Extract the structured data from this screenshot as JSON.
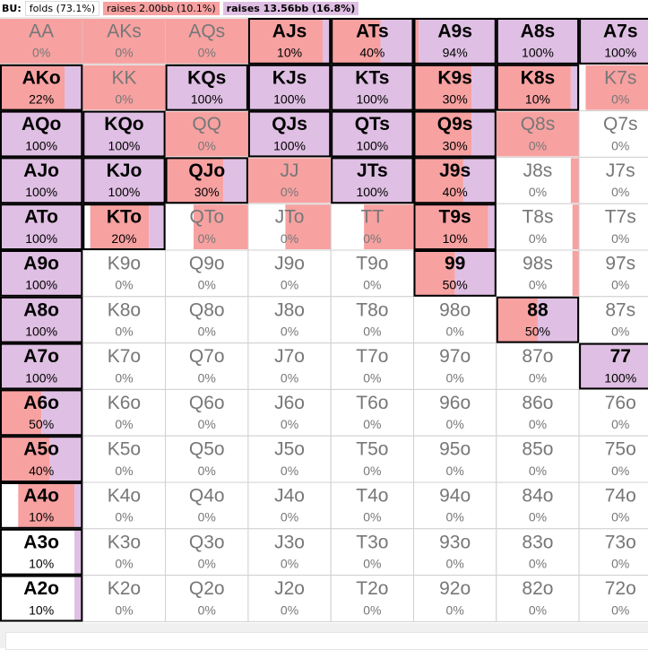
{
  "legend": {
    "position": "BU:",
    "fold": "folds (73.1%)",
    "small": "raises 2.00bb (10.1%)",
    "big": "raises 13.56bb (16.8%)"
  },
  "colors": {
    "small": "#f7a1a1",
    "big": "#dfbfe3"
  },
  "grid": {
    "rows": [
      [
        {
          "hand": "AA",
          "pct": "0%",
          "small": 100,
          "big": 0
        },
        {
          "hand": "AKs",
          "pct": "0%",
          "small": 100,
          "big": 0
        },
        {
          "hand": "AQs",
          "pct": "0%",
          "small": 100,
          "big": 0
        },
        {
          "hand": "AJs",
          "pct": "10%",
          "small": 90,
          "big": 10
        },
        {
          "hand": "ATs",
          "pct": "40%",
          "small": 60,
          "big": 40
        },
        {
          "hand": "A9s",
          "pct": "94%",
          "small": 6,
          "big": 94
        },
        {
          "hand": "A8s",
          "pct": "100%",
          "small": 0,
          "big": 100
        },
        {
          "hand": "A7s",
          "pct": "100%",
          "small": 0,
          "big": 100
        }
      ],
      [
        {
          "hand": "AKo",
          "pct": "22%",
          "small": 78,
          "big": 22
        },
        {
          "hand": "KK",
          "pct": "0%",
          "small": 100,
          "big": 0
        },
        {
          "hand": "KQs",
          "pct": "100%",
          "small": 0,
          "big": 100
        },
        {
          "hand": "KJs",
          "pct": "100%",
          "small": 0,
          "big": 100
        },
        {
          "hand": "KTs",
          "pct": "100%",
          "small": 0,
          "big": 100
        },
        {
          "hand": "K9s",
          "pct": "30%",
          "small": 70,
          "big": 30
        },
        {
          "hand": "K8s",
          "pct": "10%",
          "small": 90,
          "big": 10
        },
        {
          "hand": "K7s",
          "pct": "0%",
          "small": 92,
          "big": 0
        }
      ],
      [
        {
          "hand": "AQo",
          "pct": "100%",
          "small": 0,
          "big": 100
        },
        {
          "hand": "KQo",
          "pct": "100%",
          "small": 0,
          "big": 100
        },
        {
          "hand": "QQ",
          "pct": "0%",
          "small": 100,
          "big": 0
        },
        {
          "hand": "QJs",
          "pct": "100%",
          "small": 0,
          "big": 100
        },
        {
          "hand": "QTs",
          "pct": "100%",
          "small": 0,
          "big": 100
        },
        {
          "hand": "Q9s",
          "pct": "30%",
          "small": 70,
          "big": 30
        },
        {
          "hand": "Q8s",
          "pct": "0%",
          "small": 100,
          "big": 0
        },
        {
          "hand": "Q7s",
          "pct": "0%",
          "small": 0,
          "big": 0
        }
      ],
      [
        {
          "hand": "AJo",
          "pct": "100%",
          "small": 0,
          "big": 100
        },
        {
          "hand": "KJo",
          "pct": "100%",
          "small": 0,
          "big": 100
        },
        {
          "hand": "QJo",
          "pct": "30%",
          "small": 70,
          "big": 30
        },
        {
          "hand": "JJ",
          "pct": "0%",
          "small": 100,
          "big": 0
        },
        {
          "hand": "JTs",
          "pct": "100%",
          "small": 0,
          "big": 100
        },
        {
          "hand": "J9s",
          "pct": "40%",
          "small": 60,
          "big": 40
        },
        {
          "hand": "J8s",
          "pct": "0%",
          "small": 10,
          "big": 0
        },
        {
          "hand": "J7s",
          "pct": "0%",
          "small": 0,
          "big": 0
        }
      ],
      [
        {
          "hand": "ATo",
          "pct": "100%",
          "small": 0,
          "big": 100
        },
        {
          "hand": "KTo",
          "pct": "20%",
          "small": 71,
          "big": 20
        },
        {
          "hand": "QTo",
          "pct": "0%",
          "small": 66,
          "big": 0
        },
        {
          "hand": "JTo",
          "pct": "0%",
          "small": 55,
          "big": 0
        },
        {
          "hand": "TT",
          "pct": "0%",
          "small": 60,
          "big": 0
        },
        {
          "hand": "T9s",
          "pct": "10%",
          "small": 88,
          "big": 10
        },
        {
          "hand": "T8s",
          "pct": "0%",
          "small": 8,
          "big": 0
        },
        {
          "hand": "T7s",
          "pct": "0%",
          "small": 0,
          "big": 0
        }
      ],
      [
        {
          "hand": "A9o",
          "pct": "100%",
          "small": 0,
          "big": 100
        },
        {
          "hand": "K9o",
          "pct": "0%",
          "small": 0,
          "big": 0
        },
        {
          "hand": "Q9o",
          "pct": "0%",
          "small": 0,
          "big": 0
        },
        {
          "hand": "J9o",
          "pct": "0%",
          "small": 0,
          "big": 0
        },
        {
          "hand": "T9o",
          "pct": "0%",
          "small": 0,
          "big": 0
        },
        {
          "hand": "99",
          "pct": "50%",
          "small": 50,
          "big": 50
        },
        {
          "hand": "98s",
          "pct": "0%",
          "small": 8,
          "big": 0
        },
        {
          "hand": "97s",
          "pct": "0%",
          "small": 0,
          "big": 0
        }
      ],
      [
        {
          "hand": "A8o",
          "pct": "100%",
          "small": 0,
          "big": 100
        },
        {
          "hand": "K8o",
          "pct": "0%",
          "small": 0,
          "big": 0
        },
        {
          "hand": "Q8o",
          "pct": "0%",
          "small": 0,
          "big": 0
        },
        {
          "hand": "J8o",
          "pct": "0%",
          "small": 0,
          "big": 0
        },
        {
          "hand": "T8o",
          "pct": "0%",
          "small": 0,
          "big": 0
        },
        {
          "hand": "98o",
          "pct": "0%",
          "small": 0,
          "big": 0
        },
        {
          "hand": "88",
          "pct": "50%",
          "small": 50,
          "big": 50
        },
        {
          "hand": "87s",
          "pct": "0%",
          "small": 0,
          "big": 0
        }
      ],
      [
        {
          "hand": "A7o",
          "pct": "100%",
          "small": 0,
          "big": 100
        },
        {
          "hand": "K7o",
          "pct": "0%",
          "small": 0,
          "big": 0
        },
        {
          "hand": "Q7o",
          "pct": "0%",
          "small": 0,
          "big": 0
        },
        {
          "hand": "J7o",
          "pct": "0%",
          "small": 0,
          "big": 0
        },
        {
          "hand": "T7o",
          "pct": "0%",
          "small": 0,
          "big": 0
        },
        {
          "hand": "97o",
          "pct": "0%",
          "small": 0,
          "big": 0
        },
        {
          "hand": "87o",
          "pct": "0%",
          "small": 0,
          "big": 0
        },
        {
          "hand": "77",
          "pct": "100%",
          "small": 0,
          "big": 100
        }
      ],
      [
        {
          "hand": "A6o",
          "pct": "50%",
          "small": 50,
          "big": 50
        },
        {
          "hand": "K6o",
          "pct": "0%",
          "small": 0,
          "big": 0
        },
        {
          "hand": "Q6o",
          "pct": "0%",
          "small": 0,
          "big": 0
        },
        {
          "hand": "J6o",
          "pct": "0%",
          "small": 0,
          "big": 0
        },
        {
          "hand": "T6o",
          "pct": "0%",
          "small": 0,
          "big": 0
        },
        {
          "hand": "96o",
          "pct": "0%",
          "small": 0,
          "big": 0
        },
        {
          "hand": "86o",
          "pct": "0%",
          "small": 0,
          "big": 0
        },
        {
          "hand": "76o",
          "pct": "0%",
          "small": 0,
          "big": 0
        }
      ],
      [
        {
          "hand": "A5o",
          "pct": "40%",
          "small": 60,
          "big": 40
        },
        {
          "hand": "K5o",
          "pct": "0%",
          "small": 0,
          "big": 0
        },
        {
          "hand": "Q5o",
          "pct": "0%",
          "small": 0,
          "big": 0
        },
        {
          "hand": "J5o",
          "pct": "0%",
          "small": 0,
          "big": 0
        },
        {
          "hand": "T5o",
          "pct": "0%",
          "small": 0,
          "big": 0
        },
        {
          "hand": "95o",
          "pct": "0%",
          "small": 0,
          "big": 0
        },
        {
          "hand": "85o",
          "pct": "0%",
          "small": 0,
          "big": 0
        },
        {
          "hand": "75o",
          "pct": "0%",
          "small": 0,
          "big": 0
        }
      ],
      [
        {
          "hand": "A4o",
          "pct": "10%",
          "small": 68,
          "big": 10
        },
        {
          "hand": "K4o",
          "pct": "0%",
          "small": 0,
          "big": 0
        },
        {
          "hand": "Q4o",
          "pct": "0%",
          "small": 0,
          "big": 0
        },
        {
          "hand": "J4o",
          "pct": "0%",
          "small": 0,
          "big": 0
        },
        {
          "hand": "T4o",
          "pct": "0%",
          "small": 0,
          "big": 0
        },
        {
          "hand": "94o",
          "pct": "0%",
          "small": 0,
          "big": 0
        },
        {
          "hand": "84o",
          "pct": "0%",
          "small": 0,
          "big": 0
        },
        {
          "hand": "74o",
          "pct": "0%",
          "small": 0,
          "big": 0
        }
      ],
      [
        {
          "hand": "A3o",
          "pct": "10%",
          "small": 0,
          "big": 10
        },
        {
          "hand": "K3o",
          "pct": "0%",
          "small": 0,
          "big": 0
        },
        {
          "hand": "Q3o",
          "pct": "0%",
          "small": 0,
          "big": 0
        },
        {
          "hand": "J3o",
          "pct": "0%",
          "small": 0,
          "big": 0
        },
        {
          "hand": "T3o",
          "pct": "0%",
          "small": 0,
          "big": 0
        },
        {
          "hand": "93o",
          "pct": "0%",
          "small": 0,
          "big": 0
        },
        {
          "hand": "83o",
          "pct": "0%",
          "small": 0,
          "big": 0
        },
        {
          "hand": "73o",
          "pct": "0%",
          "small": 0,
          "big": 0
        }
      ],
      [
        {
          "hand": "A2o",
          "pct": "10%",
          "small": 0,
          "big": 10
        },
        {
          "hand": "K2o",
          "pct": "0%",
          "small": 0,
          "big": 0
        },
        {
          "hand": "Q2o",
          "pct": "0%",
          "small": 0,
          "big": 0
        },
        {
          "hand": "J2o",
          "pct": "0%",
          "small": 0,
          "big": 0
        },
        {
          "hand": "T2o",
          "pct": "0%",
          "small": 0,
          "big": 0
        },
        {
          "hand": "92o",
          "pct": "0%",
          "small": 0,
          "big": 0
        },
        {
          "hand": "82o",
          "pct": "0%",
          "small": 0,
          "big": 0
        },
        {
          "hand": "72o",
          "pct": "0%",
          "small": 0,
          "big": 0
        }
      ]
    ]
  }
}
